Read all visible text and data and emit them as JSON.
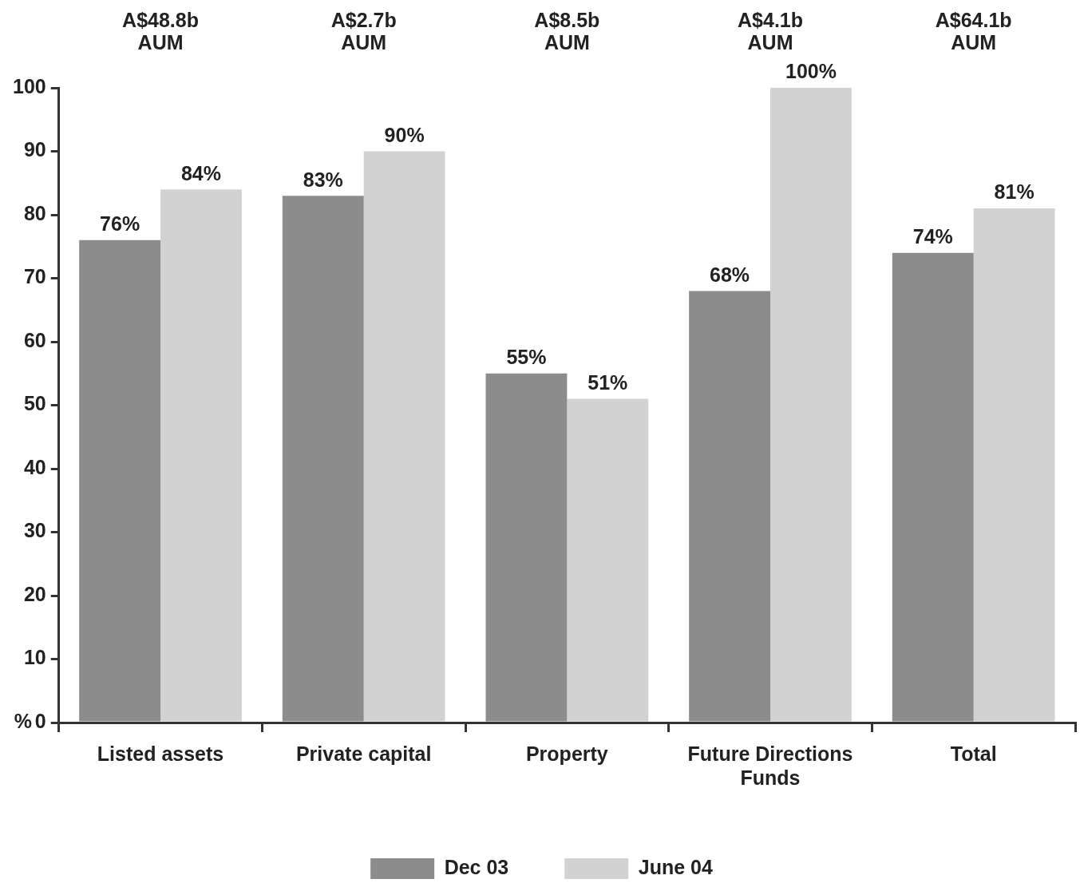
{
  "chart_data": {
    "type": "bar",
    "ylabel": "%",
    "categories": [
      "Listed assets",
      "Private capital",
      "Property",
      "Future Directions Funds",
      "Total"
    ],
    "series": [
      {
        "name": "Dec 03",
        "color": "#8c8c8c",
        "values": [
          76,
          83,
          55,
          68,
          74
        ],
        "value_labels": [
          "76%",
          "83%",
          "55%",
          "68%",
          "74%"
        ]
      },
      {
        "name": "June 04",
        "color": "#d2d2d2",
        "values": [
          84,
          90,
          51,
          100,
          81
        ],
        "value_labels": [
          "84%",
          "90%",
          "51%",
          "100%",
          "81%"
        ]
      }
    ],
    "ylim": [
      0,
      100
    ],
    "yticks": [
      0,
      10,
      20,
      30,
      40,
      50,
      60,
      70,
      80,
      90,
      100
    ],
    "grid": false,
    "legend": "bottom",
    "annotations": [
      "A$48.8b\nAUM",
      "A$2.7b\nAUM",
      "A$8.5b\nAUM",
      "A$4.1b\nAUM",
      "A$64.1b\nAUM"
    ]
  }
}
